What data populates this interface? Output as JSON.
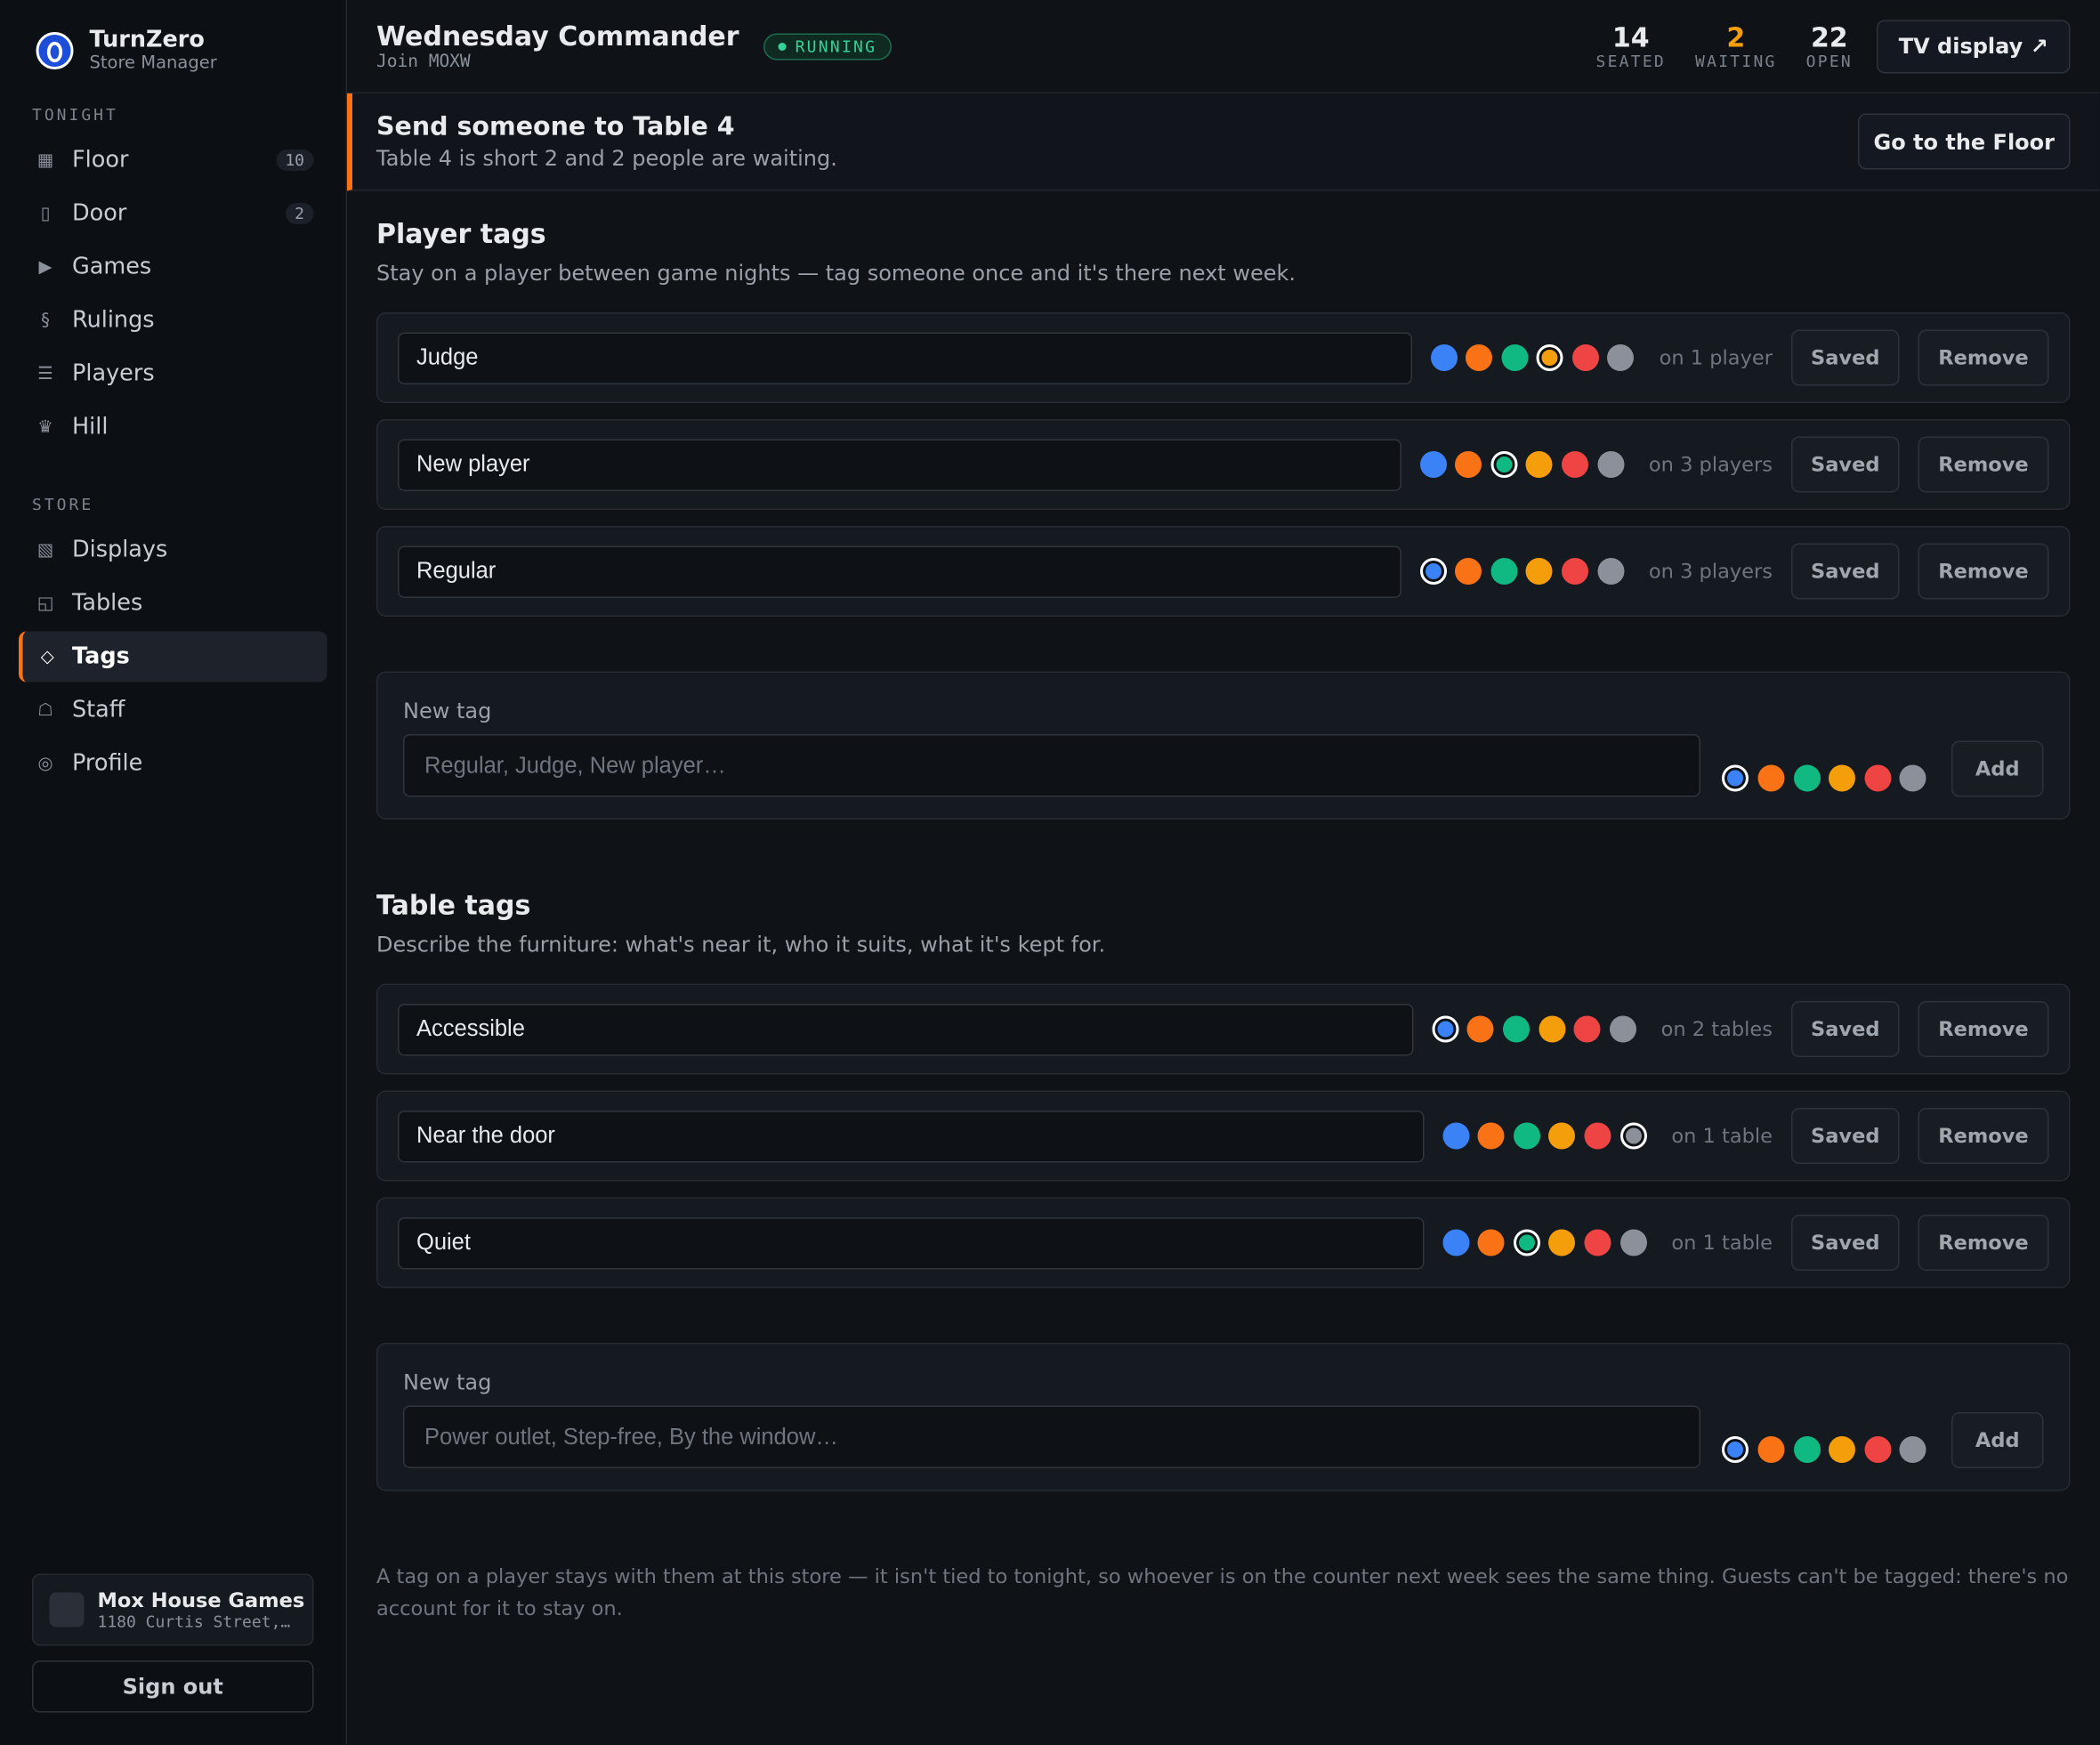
{
  "sidebar": {
    "brand": "TurnZero",
    "subtitle": "Store Manager",
    "sections": [
      {
        "title": "TONIGHT",
        "items": [
          {
            "icon": "▦",
            "label": "Floor",
            "badge": 10
          },
          {
            "icon": "▯",
            "label": "Door",
            "badge": 2
          },
          {
            "icon": "▶",
            "label": "Games"
          },
          {
            "icon": "§",
            "label": "Rulings"
          },
          {
            "icon": "☰",
            "label": "Players"
          },
          {
            "icon": "♛",
            "label": "Hill"
          }
        ]
      },
      {
        "title": "STORE",
        "items": [
          {
            "icon": "▧",
            "label": "Displays"
          },
          {
            "icon": "◱",
            "label": "Tables"
          },
          {
            "icon": "◇",
            "label": "Tags",
            "active": true
          },
          {
            "icon": "☖",
            "label": "Staff"
          },
          {
            "icon": "◎",
            "label": "Profile"
          }
        ]
      }
    ],
    "store": {
      "name": "Mox House Games",
      "address": "1180 Curtis Street,…"
    },
    "sign_out": "Sign out"
  },
  "header": {
    "title": "Wednesday Commander",
    "join": "Join MOXW",
    "status": "RUNNING",
    "stats": [
      {
        "value": 14,
        "label": "SEATED"
      },
      {
        "value": 2,
        "label": "WAITING",
        "color": "#f59e0b"
      },
      {
        "value": 22,
        "label": "OPEN"
      }
    ],
    "tv_button": "TV display ↗"
  },
  "banner": {
    "title": "Send someone to Table 4",
    "text": "Table 4 is short 2 and 2 people are waiting.",
    "button": "Go to the Floor"
  },
  "palette": [
    "#3b82f6",
    "#f97316",
    "#10b981",
    "#f59e0b",
    "#ef4444",
    "#8b9099"
  ],
  "tag_sections": [
    {
      "title": "Player tags",
      "description": "Stay on a player between game nights — tag someone once and it's there next week.",
      "saved_label": "Saved",
      "remove_label": "Remove",
      "tags": [
        {
          "name": "Judge",
          "color": "#f59e0b",
          "count": "on 1 player"
        },
        {
          "name": "New player",
          "color": "#10b981",
          "count": "on 3 players"
        },
        {
          "name": "Regular",
          "color": "#3b82f6",
          "count": "on 3 players"
        }
      ],
      "new_tag": {
        "label": "New tag",
        "placeholder": "Regular, Judge, New player…",
        "color": "#3b82f6",
        "button": "Add"
      }
    },
    {
      "title": "Table tags",
      "description": "Describe the furniture: what's near it, who it suits, what it's kept for.",
      "saved_label": "Saved",
      "remove_label": "Remove",
      "tags": [
        {
          "name": "Accessible",
          "color": "#3b82f6",
          "count": "on 2 tables"
        },
        {
          "name": "Near the door",
          "color": "#8b9099",
          "count": "on 1 table"
        },
        {
          "name": "Quiet",
          "color": "#10b981",
          "count": "on 1 table"
        }
      ],
      "new_tag": {
        "label": "New tag",
        "placeholder": "Power outlet, Step-free, By the window…",
        "color": "#3b82f6",
        "button": "Add"
      }
    }
  ],
  "footnote": "A tag on a player stays with them at this store — it isn't tied to tonight, so whoever is on the counter next week sees the same thing. Guests can't be tagged: there's no account for it to stay on."
}
